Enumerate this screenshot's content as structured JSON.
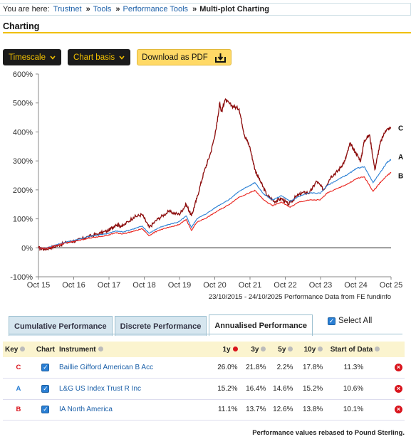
{
  "breadcrumb": {
    "prefix": "You are here:",
    "items": [
      "Trustnet",
      "Tools",
      "Performance Tools"
    ],
    "current": "Multi-plot Charting"
  },
  "page_title": "Charting",
  "toolbar": {
    "timescale_label": "Timescale",
    "chart_basis_label": "Chart basis",
    "download_label": "Download as PDF",
    "icons": [
      "chevron-down-icon",
      "chevron-down-icon",
      "download-icon"
    ]
  },
  "chart_data": {
    "type": "line",
    "y_ticks": [
      "600%",
      "500%",
      "400%",
      "300%",
      "200%",
      "100%",
      "0%",
      "-100%"
    ],
    "x_ticks": [
      "Oct 15",
      "Oct 16",
      "Oct 17",
      "Oct 18",
      "Oct 19",
      "Oct 20",
      "Oct 21",
      "Oct 22",
      "Oct 23",
      "Oct 24",
      "Oct 25"
    ],
    "ylim": [
      -100,
      600
    ],
    "xlim": [
      2015.81,
      2025.81
    ],
    "source_note": "23/10/2015 - 24/10/2025 Performance Data from FE fundinfo",
    "grid": false,
    "series": [
      {
        "name": "C",
        "color": "#8b0a0a",
        "points": [
          [
            2015.81,
            0
          ],
          [
            2016.0,
            -5
          ],
          [
            2016.3,
            5
          ],
          [
            2016.6,
            18
          ],
          [
            2016.9,
            25
          ],
          [
            2017.2,
            38
          ],
          [
            2017.5,
            48
          ],
          [
            2017.8,
            60
          ],
          [
            2018.0,
            80
          ],
          [
            2018.2,
            75
          ],
          [
            2018.5,
            105
          ],
          [
            2018.75,
            115
          ],
          [
            2018.95,
            70
          ],
          [
            2019.2,
            100
          ],
          [
            2019.5,
            125
          ],
          [
            2019.8,
            115
          ],
          [
            2020.0,
            150
          ],
          [
            2020.15,
            110
          ],
          [
            2020.3,
            170
          ],
          [
            2020.5,
            260
          ],
          [
            2020.7,
            330
          ],
          [
            2020.85,
            410
          ],
          [
            2020.95,
            500
          ],
          [
            2021.0,
            470
          ],
          [
            2021.1,
            510
          ],
          [
            2021.3,
            490
          ],
          [
            2021.5,
            480
          ],
          [
            2021.65,
            390
          ],
          [
            2021.8,
            350
          ],
          [
            2021.95,
            270
          ],
          [
            2022.1,
            230
          ],
          [
            2022.3,
            180
          ],
          [
            2022.5,
            160
          ],
          [
            2022.7,
            170
          ],
          [
            2022.9,
            150
          ],
          [
            2023.1,
            175
          ],
          [
            2023.3,
            190
          ],
          [
            2023.5,
            190
          ],
          [
            2023.7,
            230
          ],
          [
            2023.9,
            200
          ],
          [
            2024.1,
            245
          ],
          [
            2024.3,
            265
          ],
          [
            2024.5,
            300
          ],
          [
            2024.65,
            360
          ],
          [
            2024.8,
            330
          ],
          [
            2024.95,
            300
          ],
          [
            2025.05,
            370
          ],
          [
            2025.2,
            390
          ],
          [
            2025.35,
            270
          ],
          [
            2025.5,
            360
          ],
          [
            2025.65,
            405
          ],
          [
            2025.81,
            415
          ]
        ]
      },
      {
        "name": "A",
        "color": "#2a7fd4",
        "points": [
          [
            2015.81,
            0
          ],
          [
            2016.0,
            -2
          ],
          [
            2016.3,
            10
          ],
          [
            2016.6,
            20
          ],
          [
            2016.9,
            28
          ],
          [
            2017.2,
            38
          ],
          [
            2017.5,
            44
          ],
          [
            2017.8,
            50
          ],
          [
            2018.0,
            58
          ],
          [
            2018.2,
            55
          ],
          [
            2018.5,
            65
          ],
          [
            2018.75,
            75
          ],
          [
            2018.95,
            50
          ],
          [
            2019.2,
            68
          ],
          [
            2019.5,
            80
          ],
          [
            2019.8,
            90
          ],
          [
            2020.0,
            110
          ],
          [
            2020.15,
            70
          ],
          [
            2020.3,
            100
          ],
          [
            2020.6,
            120
          ],
          [
            2020.9,
            145
          ],
          [
            2021.2,
            165
          ],
          [
            2021.5,
            195
          ],
          [
            2021.8,
            215
          ],
          [
            2021.95,
            225
          ],
          [
            2022.2,
            185
          ],
          [
            2022.45,
            165
          ],
          [
            2022.7,
            180
          ],
          [
            2022.95,
            160
          ],
          [
            2023.2,
            178
          ],
          [
            2023.5,
            190
          ],
          [
            2023.8,
            188
          ],
          [
            2024.0,
            215
          ],
          [
            2024.3,
            235
          ],
          [
            2024.6,
            255
          ],
          [
            2024.85,
            275
          ],
          [
            2025.05,
            280
          ],
          [
            2025.3,
            225
          ],
          [
            2025.5,
            260
          ],
          [
            2025.7,
            295
          ],
          [
            2025.81,
            305
          ]
        ]
      },
      {
        "name": "B",
        "color": "#e8201a",
        "points": [
          [
            2015.81,
            0
          ],
          [
            2016.0,
            -3
          ],
          [
            2016.3,
            8
          ],
          [
            2016.6,
            17
          ],
          [
            2016.9,
            24
          ],
          [
            2017.2,
            32
          ],
          [
            2017.5,
            38
          ],
          [
            2017.8,
            44
          ],
          [
            2018.0,
            52
          ],
          [
            2018.2,
            48
          ],
          [
            2018.5,
            57
          ],
          [
            2018.75,
            66
          ],
          [
            2018.95,
            42
          ],
          [
            2019.2,
            60
          ],
          [
            2019.5,
            70
          ],
          [
            2019.8,
            80
          ],
          [
            2020.0,
            98
          ],
          [
            2020.15,
            60
          ],
          [
            2020.3,
            88
          ],
          [
            2020.6,
            105
          ],
          [
            2020.9,
            128
          ],
          [
            2021.2,
            148
          ],
          [
            2021.5,
            175
          ],
          [
            2021.8,
            190
          ],
          [
            2021.95,
            198
          ],
          [
            2022.2,
            165
          ],
          [
            2022.45,
            145
          ],
          [
            2022.7,
            158
          ],
          [
            2022.95,
            140
          ],
          [
            2023.2,
            158
          ],
          [
            2023.5,
            165
          ],
          [
            2023.8,
            165
          ],
          [
            2024.0,
            190
          ],
          [
            2024.3,
            205
          ],
          [
            2024.6,
            222
          ],
          [
            2024.85,
            240
          ],
          [
            2025.05,
            245
          ],
          [
            2025.3,
            195
          ],
          [
            2025.5,
            225
          ],
          [
            2025.7,
            250
          ],
          [
            2025.81,
            260
          ]
        ]
      }
    ],
    "end_labels": [
      "C",
      "A",
      "B"
    ]
  },
  "tabs": [
    {
      "label": "Cumulative Performance",
      "active": false
    },
    {
      "label": "Discrete Performance",
      "active": false
    },
    {
      "label": "Annualised Performance",
      "active": true
    }
  ],
  "select_all_label": "Select All",
  "table": {
    "headers": {
      "key": "Key",
      "chart": "Chart",
      "instrument": "Instrument",
      "y1": "1y",
      "y3": "3y",
      "y5": "5y",
      "y10": "10y",
      "start": "Start of Data"
    },
    "rows": [
      {
        "key": "C",
        "key_color": "#d9141c",
        "instrument": "Baillie Gifford American B Acc",
        "y1": "26.0%",
        "y3": "21.8%",
        "y5": "2.2%",
        "y10": "17.8%",
        "start": "11.3%"
      },
      {
        "key": "A",
        "key_color": "#2a7fd4",
        "instrument": "L&G US Index Trust R Inc",
        "y1": "15.2%",
        "y3": "16.4%",
        "y5": "14.6%",
        "y10": "15.2%",
        "start": "10.6%"
      },
      {
        "key": "B",
        "key_color": "#d9141c",
        "instrument": "IA North America",
        "y1": "11.1%",
        "y3": "13.7%",
        "y5": "12.6%",
        "y10": "13.8%",
        "start": "10.1%"
      }
    ]
  },
  "footnote": "Performance values rebased to Pound Sterling."
}
